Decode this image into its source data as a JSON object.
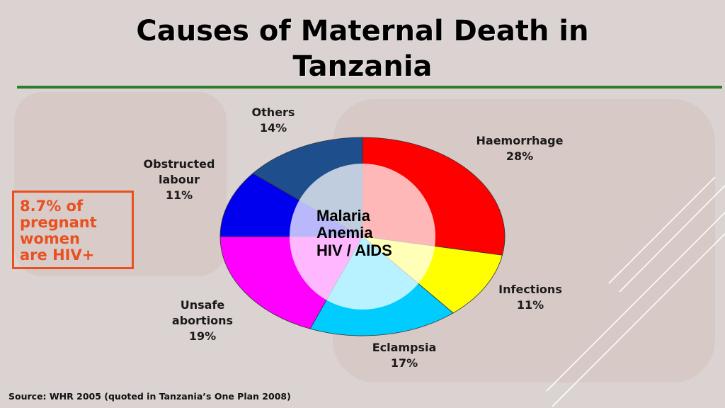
{
  "slide": {
    "title_line1": "Causes of Maternal Death in",
    "title_line2": "Tanzania",
    "hiv_note": [
      "8.7% of",
      "pregnant",
      "women",
      "are HIV+"
    ],
    "source": "Source: WHR 2005 (quoted in Tanzania’s One Plan 2008)",
    "center_labels": [
      "Malaria",
      "Anemia",
      "HIV / AIDS"
    ]
  },
  "colors": {
    "rule": "#2e7d2b",
    "note": "#e8501f"
  },
  "chart_data": {
    "type": "pie",
    "variant": "donut",
    "title": "Causes of Maternal Death in Tanzania",
    "slices": [
      {
        "label": "Haemorrhage",
        "label_lines": [
          "Haemorrhage"
        ],
        "value": 28,
        "display": "28%",
        "color": "#ff0000"
      },
      {
        "label": "Infections",
        "label_lines": [
          "Infections"
        ],
        "value": 11,
        "display": "11%",
        "color": "#ffff00"
      },
      {
        "label": "Eclampsia",
        "label_lines": [
          "Eclampsia"
        ],
        "value": 17,
        "display": "17%",
        "color": "#00ccff"
      },
      {
        "label": "Unsafe abortions",
        "label_lines": [
          "Unsafe",
          "abortions"
        ],
        "value": 19,
        "display": "19%",
        "color": "#ff00ff"
      },
      {
        "label": "Obstructed labour",
        "label_lines": [
          "Obstructed",
          "labour"
        ],
        "value": 11,
        "display": "11%",
        "color": "#0000ee"
      },
      {
        "label": "Others",
        "label_lines": [
          "Others"
        ],
        "value": 14,
        "display": "14%",
        "color": "#1f4e8c"
      }
    ]
  }
}
